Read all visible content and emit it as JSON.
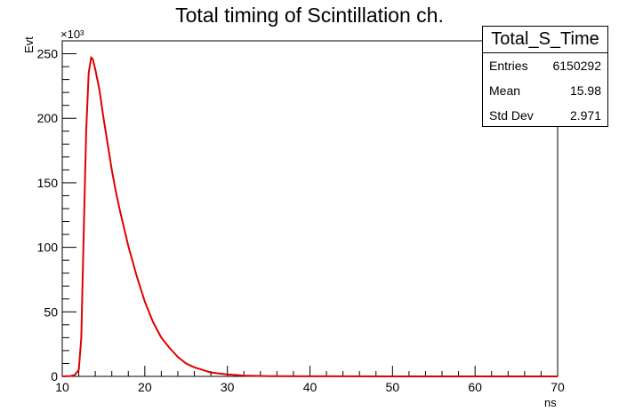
{
  "title": "Total timing of Scintillation ch.",
  "stats_box": {
    "name": "Total_S_Time",
    "rows": [
      {
        "label": "Entries",
        "value": "6150292"
      },
      {
        "label": "Mean",
        "value": "15.98"
      },
      {
        "label": "Std Dev",
        "value": "2.971"
      }
    ]
  },
  "chart_data": {
    "type": "line",
    "title": "Total timing of Scintillation ch.",
    "xlabel": "ns",
    "ylabel": "Evt",
    "y_exponent_label": "×10³",
    "xlim": [
      10,
      70
    ],
    "ylim": [
      0,
      260
    ],
    "x_ticks": [
      10,
      20,
      30,
      40,
      50,
      60,
      70
    ],
    "y_ticks": [
      0,
      50,
      100,
      150,
      200,
      250
    ],
    "line_color": "#e00000",
    "series": [
      {
        "x": [
          10.0,
          11.0,
          11.5,
          12.0,
          12.3,
          12.6,
          12.9,
          13.2,
          13.5,
          13.7,
          14.0,
          14.5,
          15.0,
          15.5,
          16.0,
          16.5,
          17.0,
          18.0,
          19.0,
          20.0,
          21.0,
          22.0,
          23.0,
          24.0,
          25.0,
          26.0,
          27.0,
          28.0,
          30.0,
          32.0,
          35.0,
          40.0,
          50.0,
          60.0,
          70.0
        ],
        "values": [
          0,
          0.3,
          1,
          5,
          30,
          110,
          190,
          235,
          247,
          246,
          238,
          222,
          200,
          180,
          160,
          143,
          128,
          101,
          78,
          58,
          42,
          30,
          22,
          15,
          10,
          7,
          5,
          3,
          1.5,
          0.6,
          0.2,
          0.05,
          0,
          0,
          0
        ]
      }
    ]
  }
}
